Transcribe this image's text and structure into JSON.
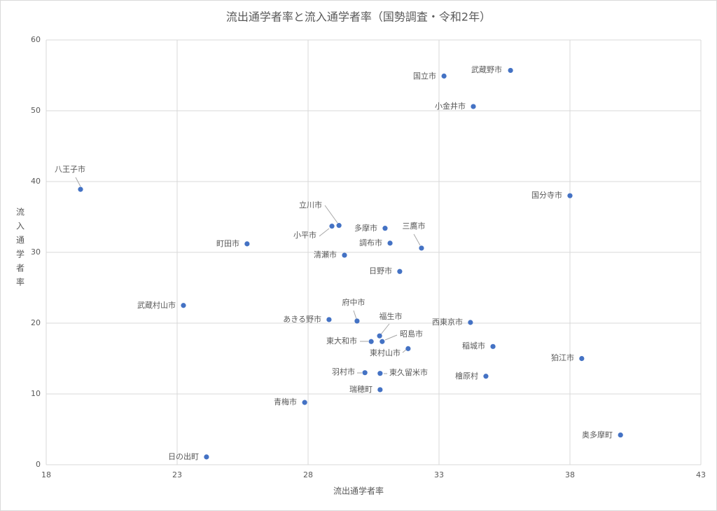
{
  "chart_data": {
    "type": "scatter",
    "title": "流出通学者率と流入通学者率（国勢調査・令和2年）",
    "x_label": "流出通学者率",
    "y_label": "流入通学者率",
    "color": "#4472c4",
    "labels": [
      "八王子市",
      "武蔵野市",
      "国立市",
      "小金井市",
      "国分寺市",
      "立川市",
      "小平市",
      "多摩市",
      "三鷹市",
      "調布市",
      "町田市",
      "清瀬市",
      "日野市",
      "武蔵村山市",
      "府中市",
      "あきる野市",
      "西東京市",
      "福生市",
      "昭島市",
      "東大和市",
      "東村山市",
      "稲城市",
      "狛江市",
      "羽村市",
      "東久留米市",
      "檜原村",
      "瑞穂町",
      "青梅市",
      "奥多摩町",
      "日の出町"
    ],
    "x": [
      19.31,
      35.73,
      33.19,
      34.31,
      38.0,
      29.18,
      28.91,
      30.94,
      32.33,
      31.13,
      25.67,
      29.39,
      31.5,
      23.24,
      29.87,
      28.8,
      34.2,
      30.73,
      30.83,
      30.41,
      31.82,
      35.06,
      38.45,
      30.17,
      30.75,
      34.79,
      30.75,
      27.87,
      39.93,
      24.12
    ],
    "values": [
      38.9,
      55.7,
      54.9,
      50.6,
      38.0,
      33.8,
      33.7,
      33.4,
      30.6,
      31.3,
      31.2,
      29.6,
      27.3,
      22.5,
      20.3,
      20.5,
      20.1,
      18.2,
      17.4,
      17.4,
      16.4,
      16.7,
      15.0,
      13.0,
      12.9,
      12.5,
      10.6,
      8.8,
      4.2,
      1.1
    ],
    "xlim": [
      18,
      43
    ],
    "xticks": [
      18,
      23,
      28,
      33,
      38,
      43
    ],
    "ylim": [
      0,
      60
    ],
    "yticks": [
      0,
      10,
      20,
      30,
      40,
      50,
      60
    ],
    "grid": true
  }
}
